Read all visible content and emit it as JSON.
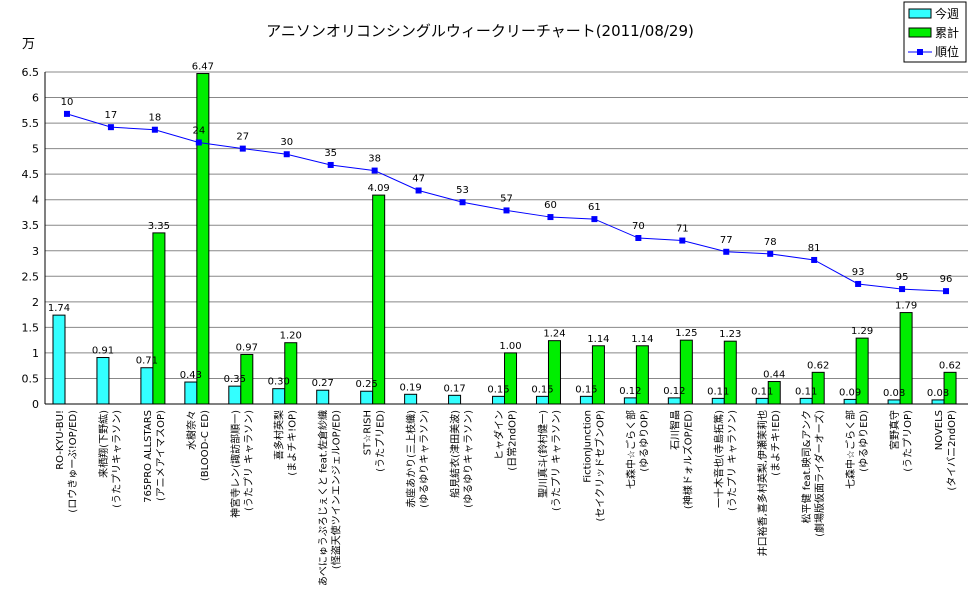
{
  "chart_data": {
    "type": "bar",
    "title": "アニソンオリコンシングルウィークリーチャート(2011/08/29)",
    "ylabel": "万",
    "ylim": [
      0,
      6.5
    ],
    "yticks": [
      "0",
      "0.5",
      "1",
      "1.5",
      "2",
      "2.5",
      "3",
      "3.5",
      "4",
      "4.5",
      "5",
      "5.5",
      "6",
      "6.5"
    ],
    "legend_position": "top-right",
    "categories": [
      [
        "RO-KYU-BU!",
        "(ロウきゅーぶ!OP/ED)"
      ],
      [
        "来栖翔(下野紘)",
        "(うたプリキャラソン)"
      ],
      [
        "765PRO ALLSTARS",
        "(アニメアイマスOP)"
      ],
      [
        "水樹奈々",
        "(BLOOD-C ED)"
      ],
      [
        "神宮寺レン(諏訪部順一)",
        "(うたプリ キャラソン)"
      ],
      [
        "喜多村英梨",
        "(まよチキ!OP)"
      ],
      [
        "あべにゅうぷろじぇくと feat.佐倉紗織",
        "(怪盗天使ツインエンジェルOP/ED)"
      ],
      [
        "ST☆RISH",
        "(うたプリED)"
      ],
      [
        "赤座あかり(三上枝織)",
        "(ゆるゆりキャラソン)"
      ],
      [
        "船見結衣(津田美波)",
        "(ゆるゆりキャラソン)"
      ],
      [
        "ヒャダイン",
        "(日常2ndOP)"
      ],
      [
        "聖川真斗(鈴村健一)",
        "(うたプリ キャラソン)"
      ],
      [
        "FictionJunction",
        "(セイクリッドセブンOP)"
      ],
      [
        "七森中☆ごらく部",
        "(ゆるゆりOP)"
      ],
      [
        "石川智晶",
        "(神様ドォルズOP/ED)"
      ],
      [
        "一十木音也(寺島拓篤)",
        "(うたプリ キャラソン)"
      ],
      [
        "井口裕香,喜多村英梨,伊瀬茉莉也",
        "(まよチキ!ED)"
      ],
      [
        "松平健 feat.映司&アンク",
        "(劇場版仮面ライダーオーズ)"
      ],
      [
        "七森中☆ごらく部",
        "(ゆるゆりED)"
      ],
      [
        "宮野真守",
        "(うたプリOP)"
      ],
      [
        "NOVELS",
        "(タイバニ2ndOP)"
      ]
    ],
    "series": [
      {
        "name": "今週",
        "kind": "bar",
        "color": "#33ffff",
        "values": [
          1.74,
          0.91,
          0.71,
          0.43,
          0.35,
          0.3,
          0.27,
          0.25,
          0.19,
          0.17,
          0.15,
          0.15,
          0.15,
          0.12,
          0.12,
          0.11,
          0.11,
          0.11,
          0.09,
          0.08,
          0.08
        ],
        "labels": [
          "1.74",
          "0.91",
          "0.71",
          "0.43",
          "0.35",
          "0.30",
          "0.27",
          "0.25",
          "0.19",
          "0.17",
          "0.15",
          "0.15",
          "0.15",
          "0.12",
          "0.12",
          "0.11",
          "0.11",
          "0.11",
          "0.09",
          "0.08",
          "0.08"
        ]
      },
      {
        "name": "累計",
        "kind": "bar",
        "color": "#00ee00",
        "values": [
          null,
          null,
          3.35,
          6.47,
          0.97,
          1.2,
          null,
          4.09,
          null,
          null,
          1.0,
          1.24,
          1.14,
          1.14,
          1.25,
          1.23,
          0.44,
          0.62,
          1.29,
          1.79,
          0.62
        ],
        "labels": [
          null,
          null,
          "3.35",
          "6.47",
          "0.97",
          "1.20",
          null,
          "4.09",
          null,
          null,
          "1.00",
          "1.24",
          "1.14",
          "1.14",
          "1.25",
          "1.23",
          "0.44",
          "0.62",
          "1.29",
          "1.79",
          "0.62"
        ]
      },
      {
        "name": "順位",
        "kind": "line",
        "color": "#0000ff",
        "values": [
          10,
          17,
          18,
          24,
          27,
          30,
          35,
          38,
          47,
          53,
          57,
          60,
          61,
          70,
          71,
          77,
          78,
          81,
          93,
          95,
          96
        ],
        "labels": [
          "10",
          "17",
          "18",
          "24",
          "27",
          "30",
          "35",
          "38",
          "47",
          "53",
          "57",
          "60",
          "61",
          "70",
          "71",
          "77",
          "78",
          "81",
          "93",
          "95",
          "96"
        ],
        "plotted_y": [
          5.68,
          5.42,
          5.37,
          5.12,
          5.0,
          4.89,
          4.68,
          4.57,
          4.18,
          3.95,
          3.79,
          3.66,
          3.62,
          3.25,
          3.2,
          2.98,
          2.94,
          2.82,
          2.35,
          2.25,
          2.21
        ]
      }
    ]
  }
}
